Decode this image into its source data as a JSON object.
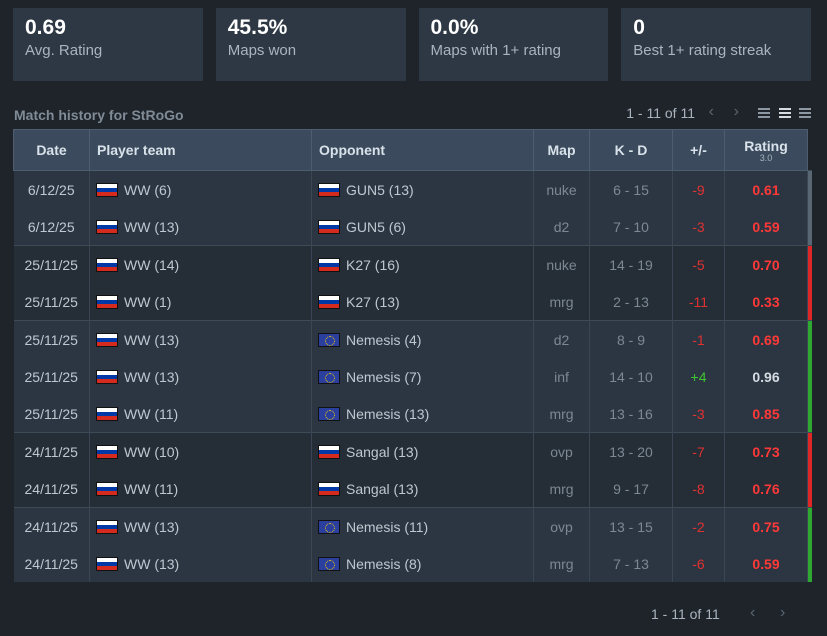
{
  "stats": [
    {
      "value": "0.69",
      "label": "Avg. Rating"
    },
    {
      "value": "45.5%",
      "label": "Maps won"
    },
    {
      "value": "0.0%",
      "label": "Maps with 1+ rating"
    },
    {
      "value": "0",
      "label": "Best 1+ rating streak"
    }
  ],
  "history": {
    "title": "Match history for StRoGo",
    "pager_text": "1 - 11 of 11",
    "prev_icon": "chevron-left-icon",
    "next_icon": "chevron-right-icon"
  },
  "table": {
    "headers": {
      "date": "Date",
      "player_team": "Player team",
      "opponent": "Opponent",
      "map": "Map",
      "kd": "K - D",
      "plusminus": "+/-",
      "rating": "Rating",
      "rating_sub": "3.0"
    },
    "rows": [
      {
        "date": "6/12/25",
        "team": "WW (6)",
        "team_flag": "ru",
        "opponent": "GUN5 (13)",
        "opp_flag": "ru",
        "map": "nuke",
        "kd": "6 - 15",
        "pm": "-9",
        "rating": "0.61",
        "result": "tie"
      },
      {
        "date": "6/12/25",
        "team": "WW (13)",
        "team_flag": "ru",
        "opponent": "GUN5 (6)",
        "opp_flag": "ru",
        "map": "d2",
        "kd": "7 - 10",
        "pm": "-3",
        "rating": "0.59",
        "result": "tie"
      },
      {
        "date": "25/11/25",
        "team": "WW (14)",
        "team_flag": "ru",
        "opponent": "K27 (16)",
        "opp_flag": "ru",
        "map": "nuke",
        "kd": "14 - 19",
        "pm": "-5",
        "rating": "0.70",
        "result": "loss"
      },
      {
        "date": "25/11/25",
        "team": "WW (1)",
        "team_flag": "ru",
        "opponent": "K27 (13)",
        "opp_flag": "ru",
        "map": "mrg",
        "kd": "2 - 13",
        "pm": "-11",
        "rating": "0.33",
        "result": "loss"
      },
      {
        "date": "25/11/25",
        "team": "WW (13)",
        "team_flag": "ru",
        "opponent": "Nemesis (4)",
        "opp_flag": "eu",
        "map": "d2",
        "kd": "8 - 9",
        "pm": "-1",
        "rating": "0.69",
        "result": "win"
      },
      {
        "date": "25/11/25",
        "team": "WW (13)",
        "team_flag": "ru",
        "opponent": "Nemesis (7)",
        "opp_flag": "eu",
        "map": "inf",
        "kd": "14 - 10",
        "pm": "+4",
        "rating": "0.96",
        "result": "win"
      },
      {
        "date": "25/11/25",
        "team": "WW (11)",
        "team_flag": "ru",
        "opponent": "Nemesis (13)",
        "opp_flag": "eu",
        "map": "mrg",
        "kd": "13 - 16",
        "pm": "-3",
        "rating": "0.85",
        "result": "win"
      },
      {
        "date": "24/11/25",
        "team": "WW (10)",
        "team_flag": "ru",
        "opponent": "Sangal (13)",
        "opp_flag": "ru",
        "map": "ovp",
        "kd": "13 - 20",
        "pm": "-7",
        "rating": "0.73",
        "result": "loss"
      },
      {
        "date": "24/11/25",
        "team": "WW (11)",
        "team_flag": "ru",
        "opponent": "Sangal (13)",
        "opp_flag": "ru",
        "map": "mrg",
        "kd": "9 - 17",
        "pm": "-8",
        "rating": "0.76",
        "result": "loss"
      },
      {
        "date": "24/11/25",
        "team": "WW (13)",
        "team_flag": "ru",
        "opponent": "Nemesis (11)",
        "opp_flag": "eu",
        "map": "ovp",
        "kd": "13 - 15",
        "pm": "-2",
        "rating": "0.75",
        "result": "win"
      },
      {
        "date": "24/11/25",
        "team": "WW (13)",
        "team_flag": "ru",
        "opponent": "Nemesis (8)",
        "opp_flag": "eu",
        "map": "mrg",
        "kd": "7 - 13",
        "pm": "-6",
        "rating": "0.59",
        "result": "win"
      }
    ]
  },
  "footer": {
    "pager_text": "1 - 11 of 11"
  },
  "colors": {
    "loss": "#e02727",
    "win": "#2ea831",
    "tie": "#596673",
    "negative": "#e03131",
    "positive": "#3fc532",
    "low_rating": "#ff3838"
  }
}
